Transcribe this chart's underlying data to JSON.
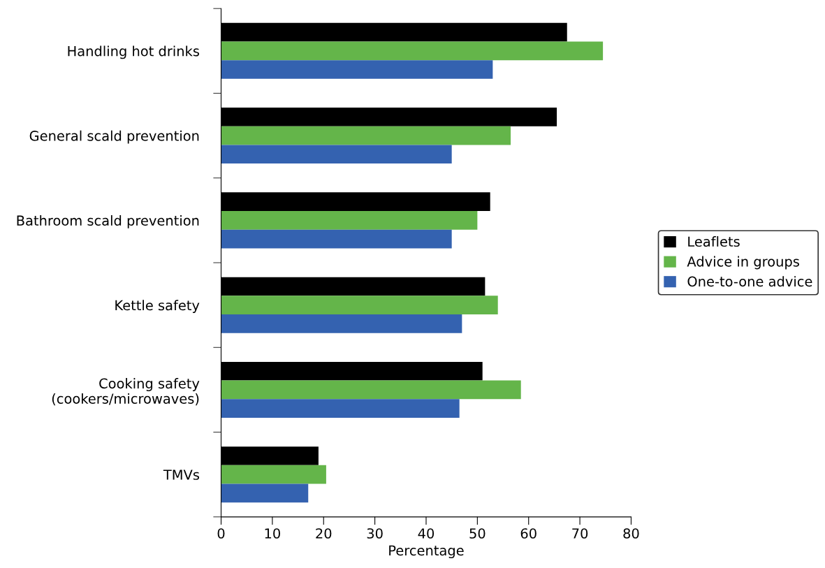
{
  "chart_data": {
    "type": "bar",
    "orientation": "horizontal",
    "xlabel": "Percentage",
    "categories": [
      "Handling hot drinks",
      "General scald prevention",
      "Bathroom scald prevention",
      "Kettle safety",
      "Cooking safety\n(cookers/microwaves)",
      "TMVs"
    ],
    "series": [
      {
        "name": "Leaflets",
        "color": "#000000",
        "values": [
          67.5,
          65.5,
          52.5,
          51.5,
          51,
          19
        ]
      },
      {
        "name": "Advice in groups",
        "color": "#64b54a",
        "values": [
          74.5,
          56.5,
          50,
          54,
          58.5,
          20.5
        ]
      },
      {
        "name": "One-to-one advice",
        "color": "#3462b0",
        "values": [
          53,
          45,
          45,
          47,
          46.5,
          17
        ]
      }
    ],
    "xlim": [
      0,
      80
    ],
    "xticks": [
      0,
      10,
      20,
      30,
      40,
      50,
      60,
      70,
      80
    ],
    "grid": false,
    "legend": "right"
  }
}
